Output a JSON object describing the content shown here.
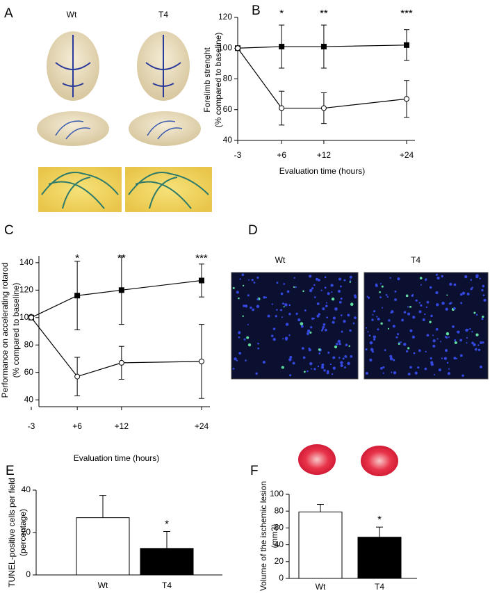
{
  "panel_labels": [
    "A",
    "B",
    "C",
    "D",
    "E",
    "F"
  ],
  "panel_a": {
    "labels": [
      "Wt",
      "T4"
    ]
  },
  "panel_d": {
    "labels": [
      "Wt",
      "T4"
    ]
  },
  "chart_data": [
    {
      "type": "line",
      "ylabel": [
        "Forelimb strenght",
        "(% compared to baseline)"
      ],
      "xlabel": "Evaluation time (hours)",
      "categories": [
        "-3",
        "+6",
        "+12",
        "+24"
      ],
      "ylim": [
        40,
        120
      ],
      "yticks": [
        40,
        60,
        80,
        100,
        120
      ],
      "annotations": [
        null,
        "*",
        "**",
        "***"
      ],
      "series": [
        {
          "color": "#000000",
          "marker": "square",
          "filled": true,
          "values": [
            100,
            101,
            101,
            102
          ],
          "errors": [
            null,
            14,
            14,
            10
          ]
        },
        {
          "color": "#000000",
          "marker": "circle",
          "filled": false,
          "values": [
            100,
            61,
            61,
            67
          ],
          "errors": [
            null,
            11,
            10,
            12
          ]
        }
      ]
    },
    {
      "type": "line",
      "ylabel": [
        "Performance on accelerating rotarod",
        "(% compared to baseline)"
      ],
      "xlabel": "Evaluation time (hours)",
      "categories": [
        "-3",
        "+6",
        "+12",
        "+24"
      ],
      "ylim": [
        35,
        145
      ],
      "yticks": [
        40,
        60,
        80,
        100,
        120,
        140
      ],
      "annotations": [
        null,
        "*",
        "**",
        "***"
      ],
      "series": [
        {
          "color": "#000000",
          "marker": "square",
          "filled": true,
          "values": [
            100,
            116,
            120,
            127
          ],
          "errors": [
            null,
            25,
            25,
            12
          ]
        },
        {
          "color": "#000000",
          "marker": "circle",
          "filled": false,
          "values": [
            100,
            57,
            67,
            68
          ],
          "errors": [
            null,
            14,
            12,
            27
          ]
        }
      ]
    },
    {
      "type": "bar",
      "ylabel": [
        "TUNEL-positive cells per field",
        "(percentage)"
      ],
      "categories": [
        "Wt",
        "T4"
      ],
      "values": [
        27,
        12.5
      ],
      "errors": [
        10.5,
        8
      ],
      "colors": [
        "#ffffff",
        "#000000"
      ],
      "ylim": [
        0,
        40
      ],
      "yticks": [
        0,
        20,
        40
      ],
      "annotations": [
        null,
        "*"
      ]
    },
    {
      "type": "bar",
      "ylabel": [
        "Volume of the ischemic lesion",
        "(mm3)"
      ],
      "categories": [
        "Wt",
        "T4"
      ],
      "values": [
        79,
        49
      ],
      "errors": [
        9,
        12
      ],
      "colors": [
        "#ffffff",
        "#000000"
      ],
      "ylim": [
        0,
        100
      ],
      "yticks": [
        0,
        20,
        40,
        60,
        80,
        100
      ],
      "annotations": [
        null,
        "*"
      ]
    }
  ]
}
